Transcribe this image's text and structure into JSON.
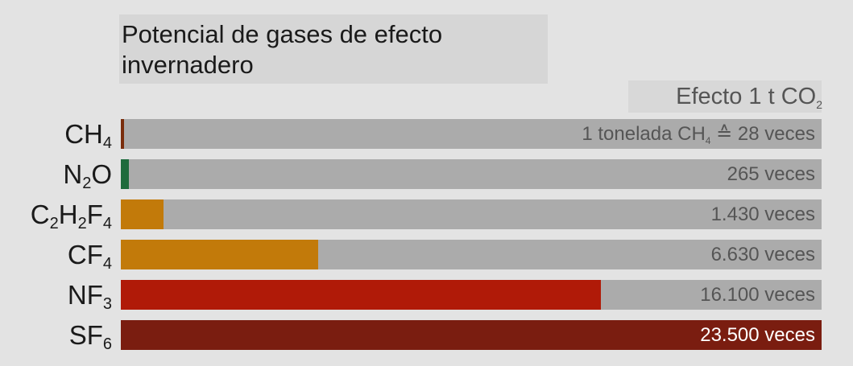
{
  "chart_data": {
    "type": "bar",
    "orientation": "horizontal",
    "title": "Potencial de gases de efecto invernadero",
    "value_axis_label": "Efecto 1 t CO2",
    "xlim": [
      0,
      23500
    ],
    "grid": false,
    "legend": "none",
    "categories": [
      "CH4",
      "N2O",
      "C2H2F4",
      "CF4",
      "NF3",
      "SF6"
    ],
    "values": [
      28,
      265,
      1430,
      6630,
      16100,
      23500
    ],
    "data_labels": [
      "1 tonelada CH4 ≙ 28 veces",
      "265 veces",
      "1.430 veces",
      "6.630 veces",
      "16.100 veces",
      "23.500 veces"
    ],
    "colors": [
      "#7a2d0c",
      "#1e6b3c",
      "#c27a0a",
      "#c27a0a",
      "#b01a08",
      "#7a1d10"
    ],
    "track_color": "#ababab"
  }
}
